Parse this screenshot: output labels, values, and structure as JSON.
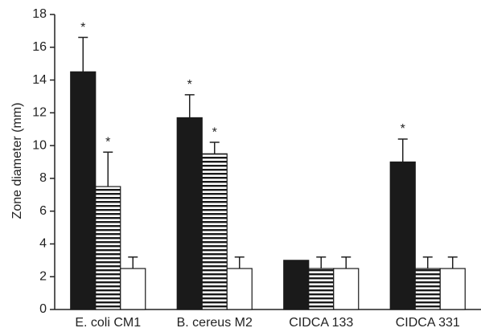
{
  "chart_data": {
    "type": "bar",
    "y_label": "Zone diameter (mm)",
    "categories": [
      "E. coli CM1",
      "B. cereus M2",
      "CIDCA 133",
      "CIDCA 331"
    ],
    "series": [
      {
        "color": "#1a1a1a",
        "values": [
          14.5,
          11.7,
          3.0,
          9.0
        ],
        "errors": [
          2.1,
          1.4,
          null,
          1.4
        ]
      },
      {
        "color": "#1a1a1a",
        "hatch": "horizontal",
        "values": [
          7.5,
          9.5,
          2.5,
          2.5
        ],
        "errors": [
          2.1,
          0.7,
          0.7,
          0.7
        ]
      },
      {
        "color": "#ffffff",
        "values": [
          2.5,
          2.5,
          2.5,
          2.5
        ],
        "errors": [
          0.7,
          0.7,
          0.7,
          0.7
        ]
      }
    ],
    "annotations": [
      {
        "text": "*",
        "series": 0,
        "category": 0
      },
      {
        "text": "*",
        "series": 1,
        "category": 0
      },
      {
        "text": "*",
        "series": 0,
        "category": 1
      },
      {
        "text": "*",
        "series": 1,
        "category": 1
      },
      {
        "text": "*",
        "series": 0,
        "category": 3
      }
    ],
    "ylim": [
      0,
      18
    ],
    "yticks": [
      0,
      2,
      4,
      6,
      8,
      10,
      12,
      14,
      16,
      18
    ],
    "grid": false
  }
}
